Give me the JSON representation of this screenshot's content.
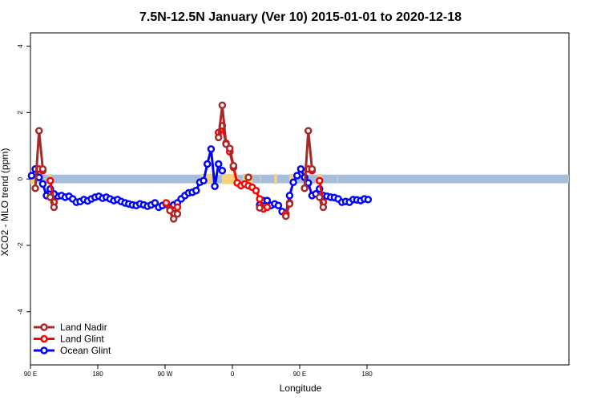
{
  "chart_data": {
    "type": "line",
    "title": "7.5N-12.5N January (Ver 10)   2015-01-01 to 2020-12-18",
    "xlabel": "Longitude",
    "ylabel": "XCO2 - MLO trend (ppm)",
    "xlim": [
      90,
      450
    ],
    "ylim": [
      -5.6,
      4.4
    ],
    "x_ticks": [
      {
        "value": 90,
        "label": "90 E"
      },
      {
        "value": 180,
        "label": "180"
      },
      {
        "value": 270,
        "label": "90 W"
      },
      {
        "value": 360,
        "label": "0"
      },
      {
        "value": 450,
        "label": "90 E"
      },
      {
        "value": 540,
        "label": "180"
      }
    ],
    "y_ticks": [
      {
        "value": 4,
        "label": "4"
      },
      {
        "value": 2,
        "label": "2"
      },
      {
        "value": 0,
        "label": "0"
      },
      {
        "value": -2,
        "label": "-2"
      },
      {
        "value": -4,
        "label": "-4"
      }
    ],
    "grid": false,
    "legend_position": "bottom-left",
    "background_band": {
      "y_center": 0,
      "half_height": 0.13,
      "color": "#a6bddb",
      "land_color": "#f6d27a"
    },
    "land_segments": [
      [
        90,
        95
      ],
      [
        114,
        118
      ],
      [
        318,
        333
      ],
      [
        346,
        367
      ],
      [
        373,
        372
      ],
      [
        374,
        387
      ],
      [
        397,
        398
      ],
      [
        416,
        420
      ],
      [
        436,
        443
      ],
      [
        456,
        458
      ],
      [
        474,
        480
      ],
      [
        500,
        501
      ]
    ],
    "series": [
      {
        "name": "Land Nadir",
        "color": "#a52a2a",
        "x": [
          96.5,
          101.5,
          106.5,
          111.5,
          116.5,
          121.5
        ],
        "y": [
          -0.28,
          1.45,
          0.3,
          0.2,
          -0.55,
          -0.85
        ],
        "gaps": [],
        "segments": [
          {
            "x": [
              96.5,
              101.5,
              106.5
            ],
            "y": [
              -0.28,
              1.45,
              0.3
            ]
          },
          {
            "x": [
              116.5,
              121.5
            ],
            "y": [
              -0.55,
              -0.85
            ]
          },
          {
            "x": [
              276.5,
              281.5,
              286.5
            ],
            "y": [
              -0.95,
              -1.2,
              -1.05
            ]
          },
          {
            "x": [
              341.5,
              346.5,
              351.5,
              356.5,
              361.5
            ],
            "y": [
              1.25,
              2.22,
              1.05,
              0.92,
              0.4
            ]
          },
          {
            "x": [
              381.5
            ],
            "y": [
              0.05
            ]
          },
          {
            "x": [
              396.5
            ],
            "y": [
              -0.87
            ]
          },
          {
            "x": [
              431.5,
              436.5
            ],
            "y": [
              -1.12,
              -0.75
            ]
          },
          {
            "x": [
              456.5,
              461.5,
              466.5
            ],
            "y": [
              -0.28,
              1.45,
              0.3
            ]
          },
          {
            "x": [
              476.5,
              481.5
            ],
            "y": [
              -0.55,
              -0.85
            ]
          }
        ]
      },
      {
        "name": "Land Glint",
        "color": "#ff0000",
        "x": [],
        "y": [],
        "segments": [
          {
            "x": [
              101.5,
              106.5
            ],
            "y": [
              0.3,
              0.25
            ]
          },
          {
            "x": [
              116.5,
              121.5
            ],
            "y": [
              -0.05,
              -0.7
            ]
          },
          {
            "x": [
              271.5,
              276.5,
              281.5,
              286.5
            ],
            "y": [
              -0.72,
              -0.9,
              -1.05,
              -0.85
            ]
          },
          {
            "x": [
              341.5,
              346.5,
              351.5,
              356.5,
              361.5,
              366.5,
              371.5,
              376.5,
              381.5,
              386.5,
              391.5,
              396.5,
              401.5,
              406.5
            ],
            "y": [
              1.4,
              1.6,
              1.08,
              0.82,
              0.35,
              -0.12,
              -0.2,
              -0.15,
              -0.2,
              -0.25,
              -0.35,
              -0.6,
              -0.9,
              -0.85
            ]
          },
          {
            "x": [
              431.5,
              436.5
            ],
            "y": [
              -1.05,
              -0.72
            ]
          },
          {
            "x": [
              461.5,
              466.5
            ],
            "y": [
              0.3,
              0.25
            ]
          },
          {
            "x": [
              476.5,
              481.5
            ],
            "y": [
              -0.05,
              -0.7
            ]
          }
        ]
      },
      {
        "name": "Ocean Glint",
        "color": "#0000ff",
        "segments": [
          {
            "x": [
              91.5,
              96.5,
              101.5,
              106.5,
              111.5,
              116.5,
              121.5,
              126.5,
              131.5,
              136.5,
              141.5,
              146.5,
              151.5,
              156.5,
              161.5,
              166.5,
              171.5,
              176.5,
              181.5,
              186.5,
              191.5,
              196.5,
              201.5,
              206.5,
              211.5,
              216.5,
              221.5,
              226.5,
              231.5,
              236.5,
              241.5,
              246.5,
              251.5,
              256.5,
              261.5,
              266.5,
              271.5,
              276.5,
              281.5,
              286.5,
              291.5,
              296.5,
              301.5,
              306.5,
              311.5,
              316.5,
              321.5,
              326.5,
              331.5,
              336.5,
              341.5,
              346.5
            ],
            "y": [
              0.1,
              0.3,
              0.05,
              -0.15,
              -0.5,
              -0.4,
              -0.55,
              -0.52,
              -0.5,
              -0.55,
              -0.52,
              -0.6,
              -0.7,
              -0.68,
              -0.62,
              -0.66,
              -0.6,
              -0.55,
              -0.52,
              -0.58,
              -0.55,
              -0.6,
              -0.65,
              -0.62,
              -0.68,
              -0.72,
              -0.75,
              -0.78,
              -0.8,
              -0.75,
              -0.78,
              -0.82,
              -0.78,
              -0.72,
              -0.85,
              -0.8,
              -0.75,
              -0.88,
              -0.78,
              -0.72,
              -0.6,
              -0.5,
              -0.42,
              -0.4,
              -0.35,
              -0.1,
              -0.05,
              0.45,
              0.9,
              -0.22,
              0.45,
              0.25
            ]
          },
          {
            "x": [
              116.5,
              121.5
            ],
            "y": [
              -0.3,
              -0.45
            ]
          },
          {
            "x": [
              396.5,
              401.5,
              406.5,
              411.5,
              416.5,
              421.5,
              426.5,
              431.5,
              436.5,
              441.5,
              446.5,
              451.5,
              456.5,
              461.5,
              466.5,
              471.5,
              476.5,
              481.5,
              486.5,
              491.5,
              496.5,
              501.5,
              506.5,
              511.5,
              516.5,
              521.5,
              526.5,
              531.5,
              536.5,
              541.5
            ],
            "y": [
              -0.78,
              -0.65,
              -0.65,
              -0.8,
              -0.75,
              -0.8,
              -0.98,
              -1.05,
              -0.5,
              -0.1,
              0.1,
              0.3,
              0.05,
              -0.12,
              -0.5,
              -0.45,
              -0.3,
              -0.5,
              -0.52,
              -0.55,
              -0.56,
              -0.6,
              -0.7,
              -0.68,
              -0.7,
              -0.62,
              -0.63,
              -0.65,
              -0.6,
              -0.62
            ]
          }
        ]
      }
    ]
  }
}
